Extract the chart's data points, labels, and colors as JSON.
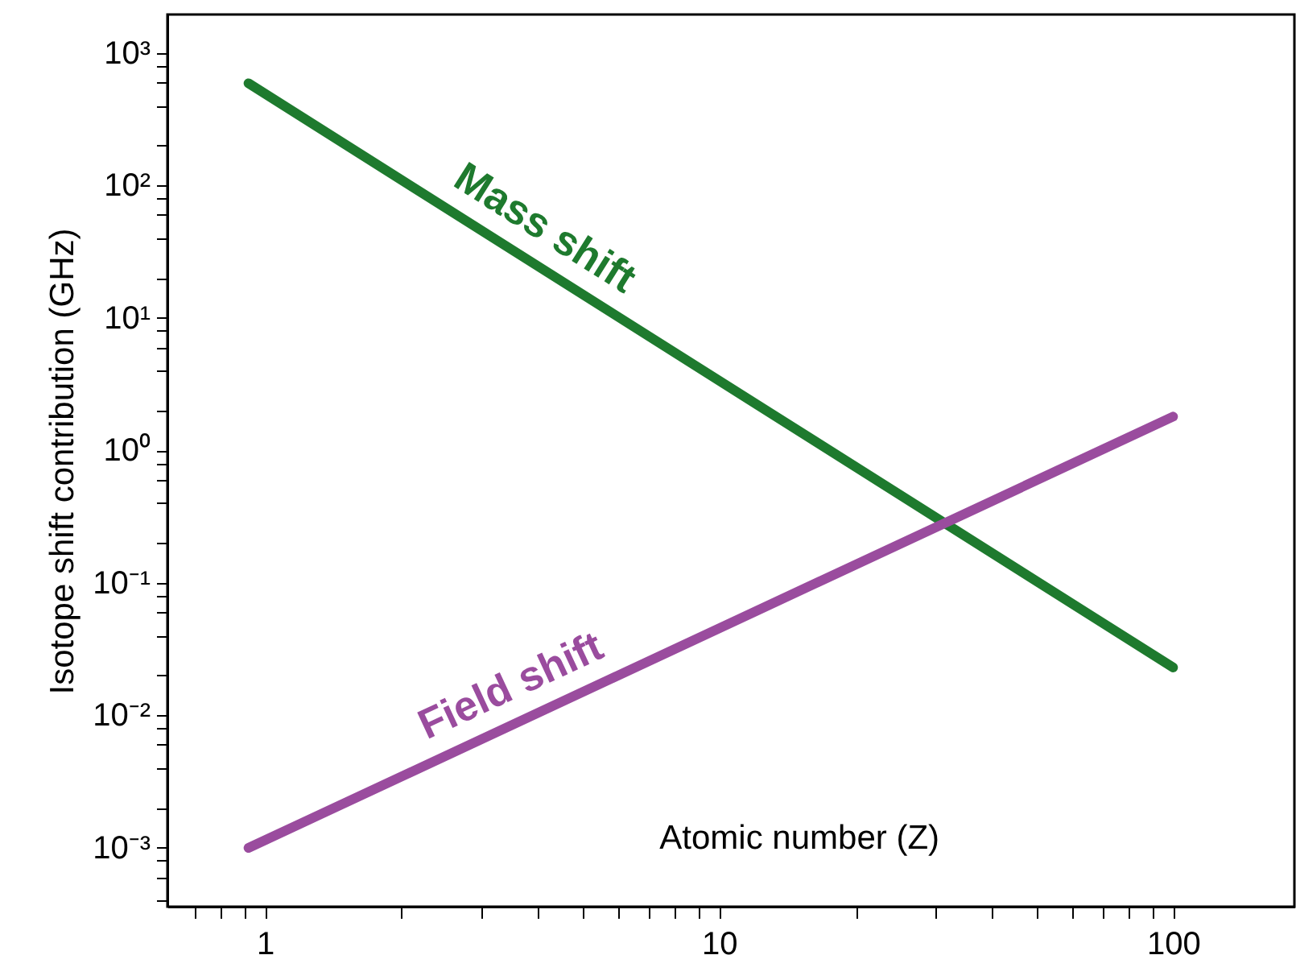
{
  "chart_data": {
    "type": "line",
    "xlabel": "Atomic number (Z)",
    "ylabel": "Isotope shift contribution (GHz)",
    "log": "xy",
    "grid": false,
    "line_style": "solid",
    "marker": "none",
    "xlim": [
      0.61,
      185
    ],
    "ylim": [
      0.00036,
      1950
    ],
    "xticks": [
      {
        "value": 0.7,
        "label": null
      },
      {
        "value": 0.8,
        "label": null
      },
      {
        "value": 0.9,
        "label": null
      },
      1,
      {
        "value": 2,
        "label": null
      },
      {
        "value": 3,
        "label": null
      },
      {
        "value": 4,
        "label": null
      },
      {
        "value": 5,
        "label": null
      },
      {
        "value": 6,
        "label": null
      },
      {
        "value": 7,
        "label": null
      },
      {
        "value": 8,
        "label": null
      },
      {
        "value": 9,
        "label": null
      },
      10,
      {
        "value": 20,
        "label": null
      },
      {
        "value": 30,
        "label": null
      },
      {
        "value": 40,
        "label": null
      },
      {
        "value": 50,
        "label": null
      },
      {
        "value": 60,
        "label": null
      },
      {
        "value": 70,
        "label": null
      },
      {
        "value": 80,
        "label": null
      },
      {
        "value": 90,
        "label": null
      },
      100
    ],
    "yticks": [
      {
        "value": 0.0004,
        "label": null
      },
      {
        "value": 0.0006,
        "label": null
      },
      {
        "value": 0.0008,
        "label": null
      },
      {
        "value": 0.001,
        "label": "10⁻³"
      },
      {
        "value": 0.002,
        "label": null
      },
      {
        "value": 0.004,
        "label": null
      },
      {
        "value": 0.006,
        "label": null
      },
      {
        "value": 0.008,
        "label": null
      },
      {
        "value": 0.01,
        "label": "10⁻²"
      },
      {
        "value": 0.02,
        "label": null
      },
      {
        "value": 0.04,
        "label": null
      },
      {
        "value": 0.06,
        "label": null
      },
      {
        "value": 0.08,
        "label": null
      },
      {
        "value": 0.1,
        "label": "10⁻¹"
      },
      {
        "value": 0.2,
        "label": null
      },
      {
        "value": 0.4,
        "label": null
      },
      {
        "value": 0.6,
        "label": null
      },
      {
        "value": 0.8,
        "label": null
      },
      {
        "value": 1,
        "label": "10⁰"
      },
      {
        "value": 2,
        "label": null
      },
      {
        "value": 4,
        "label": null
      },
      {
        "value": 6,
        "label": null
      },
      {
        "value": 8,
        "label": null
      },
      {
        "value": 10,
        "label": "10¹"
      },
      {
        "value": 20,
        "label": null
      },
      {
        "value": 40,
        "label": null
      },
      {
        "value": 60,
        "label": null
      },
      {
        "value": 80,
        "label": null
      },
      {
        "value": 100,
        "label": "10²"
      },
      {
        "value": 200,
        "label": null
      },
      {
        "value": 400,
        "label": null
      },
      {
        "value": 600,
        "label": null
      },
      {
        "value": 800,
        "label": null
      },
      {
        "value": 1000,
        "label": "10³"
      }
    ],
    "x": [
      0.92,
      100
    ],
    "series": [
      {
        "name": "Mass shift",
        "color": "#1e7a2e",
        "values": [
          590,
          0.023
        ]
      },
      {
        "name": "Field shift",
        "color": "#9a4c9e",
        "values": [
          0.001,
          1.8
        ]
      }
    ]
  }
}
